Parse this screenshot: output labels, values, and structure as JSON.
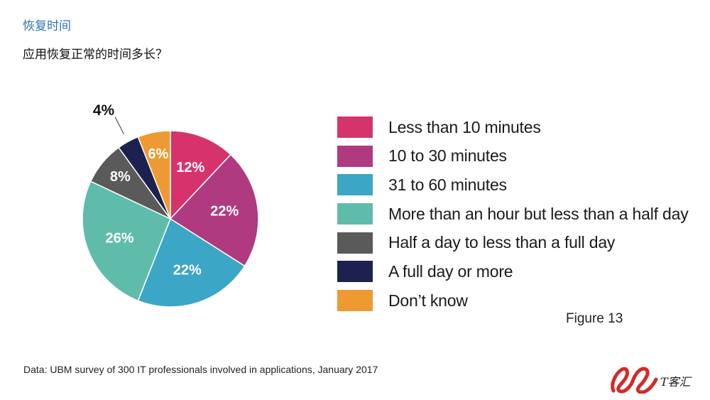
{
  "slide": {
    "title": "恢复时间",
    "subtitle": "应用恢复正常的时间多长？",
    "figure_label": "Figure 13",
    "source_note": "Data: UBM survey of 300 IT professionals involved in applications, January 2017",
    "logo_text": "T客汇"
  },
  "chart_data": {
    "type": "pie",
    "title": "",
    "start_angle_deg": 0,
    "direction": "clockwise",
    "legend_position": "right",
    "slices": [
      {
        "label": "Less than 10 minutes",
        "value": 12,
        "display": "12%",
        "color": "#d6336c"
      },
      {
        "label": "10 to 30 minutes",
        "value": 22,
        "display": "22%",
        "color": "#b03a80"
      },
      {
        "label": "31 to 60 minutes",
        "value": 22,
        "display": "22%",
        "color": "#3ba6c6"
      },
      {
        "label": "More than an hour but less than a half day",
        "value": 26,
        "display": "26%",
        "color": "#5fbcaa"
      },
      {
        "label": "Half a day to less than a full day",
        "value": 8,
        "display": "8%",
        "color": "#5a5a5a"
      },
      {
        "label": "A full day or more",
        "value": 4,
        "display": "4%",
        "color": "#1c2150"
      },
      {
        "label": "Don’t know",
        "value": 6,
        "display": "6%",
        "color": "#ee9a33"
      }
    ]
  }
}
